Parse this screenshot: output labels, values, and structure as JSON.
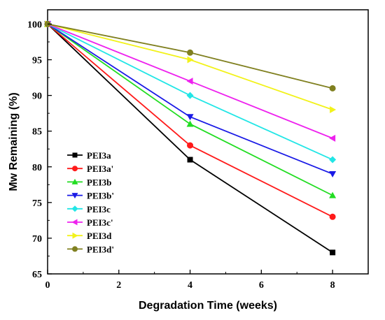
{
  "chart_data": {
    "type": "line",
    "xlabel": "Degradation Time (weeks)",
    "ylabel": "Mw Remaining (%)",
    "xlim": [
      0,
      9
    ],
    "ylim": [
      65,
      102
    ],
    "xticks": [
      0,
      2,
      4,
      6,
      8
    ],
    "yticks": [
      65,
      70,
      75,
      80,
      85,
      90,
      95,
      100
    ],
    "x": [
      0,
      4,
      8
    ],
    "legend_position": "center-left",
    "grid": false,
    "series": [
      {
        "name": "PEI3a",
        "values": [
          100,
          81,
          68
        ],
        "color": "#000000",
        "marker": "square"
      },
      {
        "name": "PEI3a'",
        "values": [
          100,
          83,
          73
        ],
        "color": "#ff1a1a",
        "marker": "circle"
      },
      {
        "name": "PEI3b",
        "values": [
          100,
          86,
          76
        ],
        "color": "#22dd22",
        "marker": "triangle-up"
      },
      {
        "name": "PEI3b'",
        "values": [
          100,
          87,
          79
        ],
        "color": "#1a1ae6",
        "marker": "triangle-down"
      },
      {
        "name": "PEI3c",
        "values": [
          100,
          90,
          81
        ],
        "color": "#22e6e6",
        "marker": "diamond"
      },
      {
        "name": "PEI3c'",
        "values": [
          100,
          92,
          84
        ],
        "color": "#ee22ee",
        "marker": "triangle-left"
      },
      {
        "name": "PEI3d",
        "values": [
          100,
          95,
          88
        ],
        "color": "#f2f21a",
        "marker": "triangle-right"
      },
      {
        "name": "PEI3d'",
        "values": [
          100,
          96,
          91
        ],
        "color": "#808020",
        "marker": "circle"
      }
    ]
  }
}
